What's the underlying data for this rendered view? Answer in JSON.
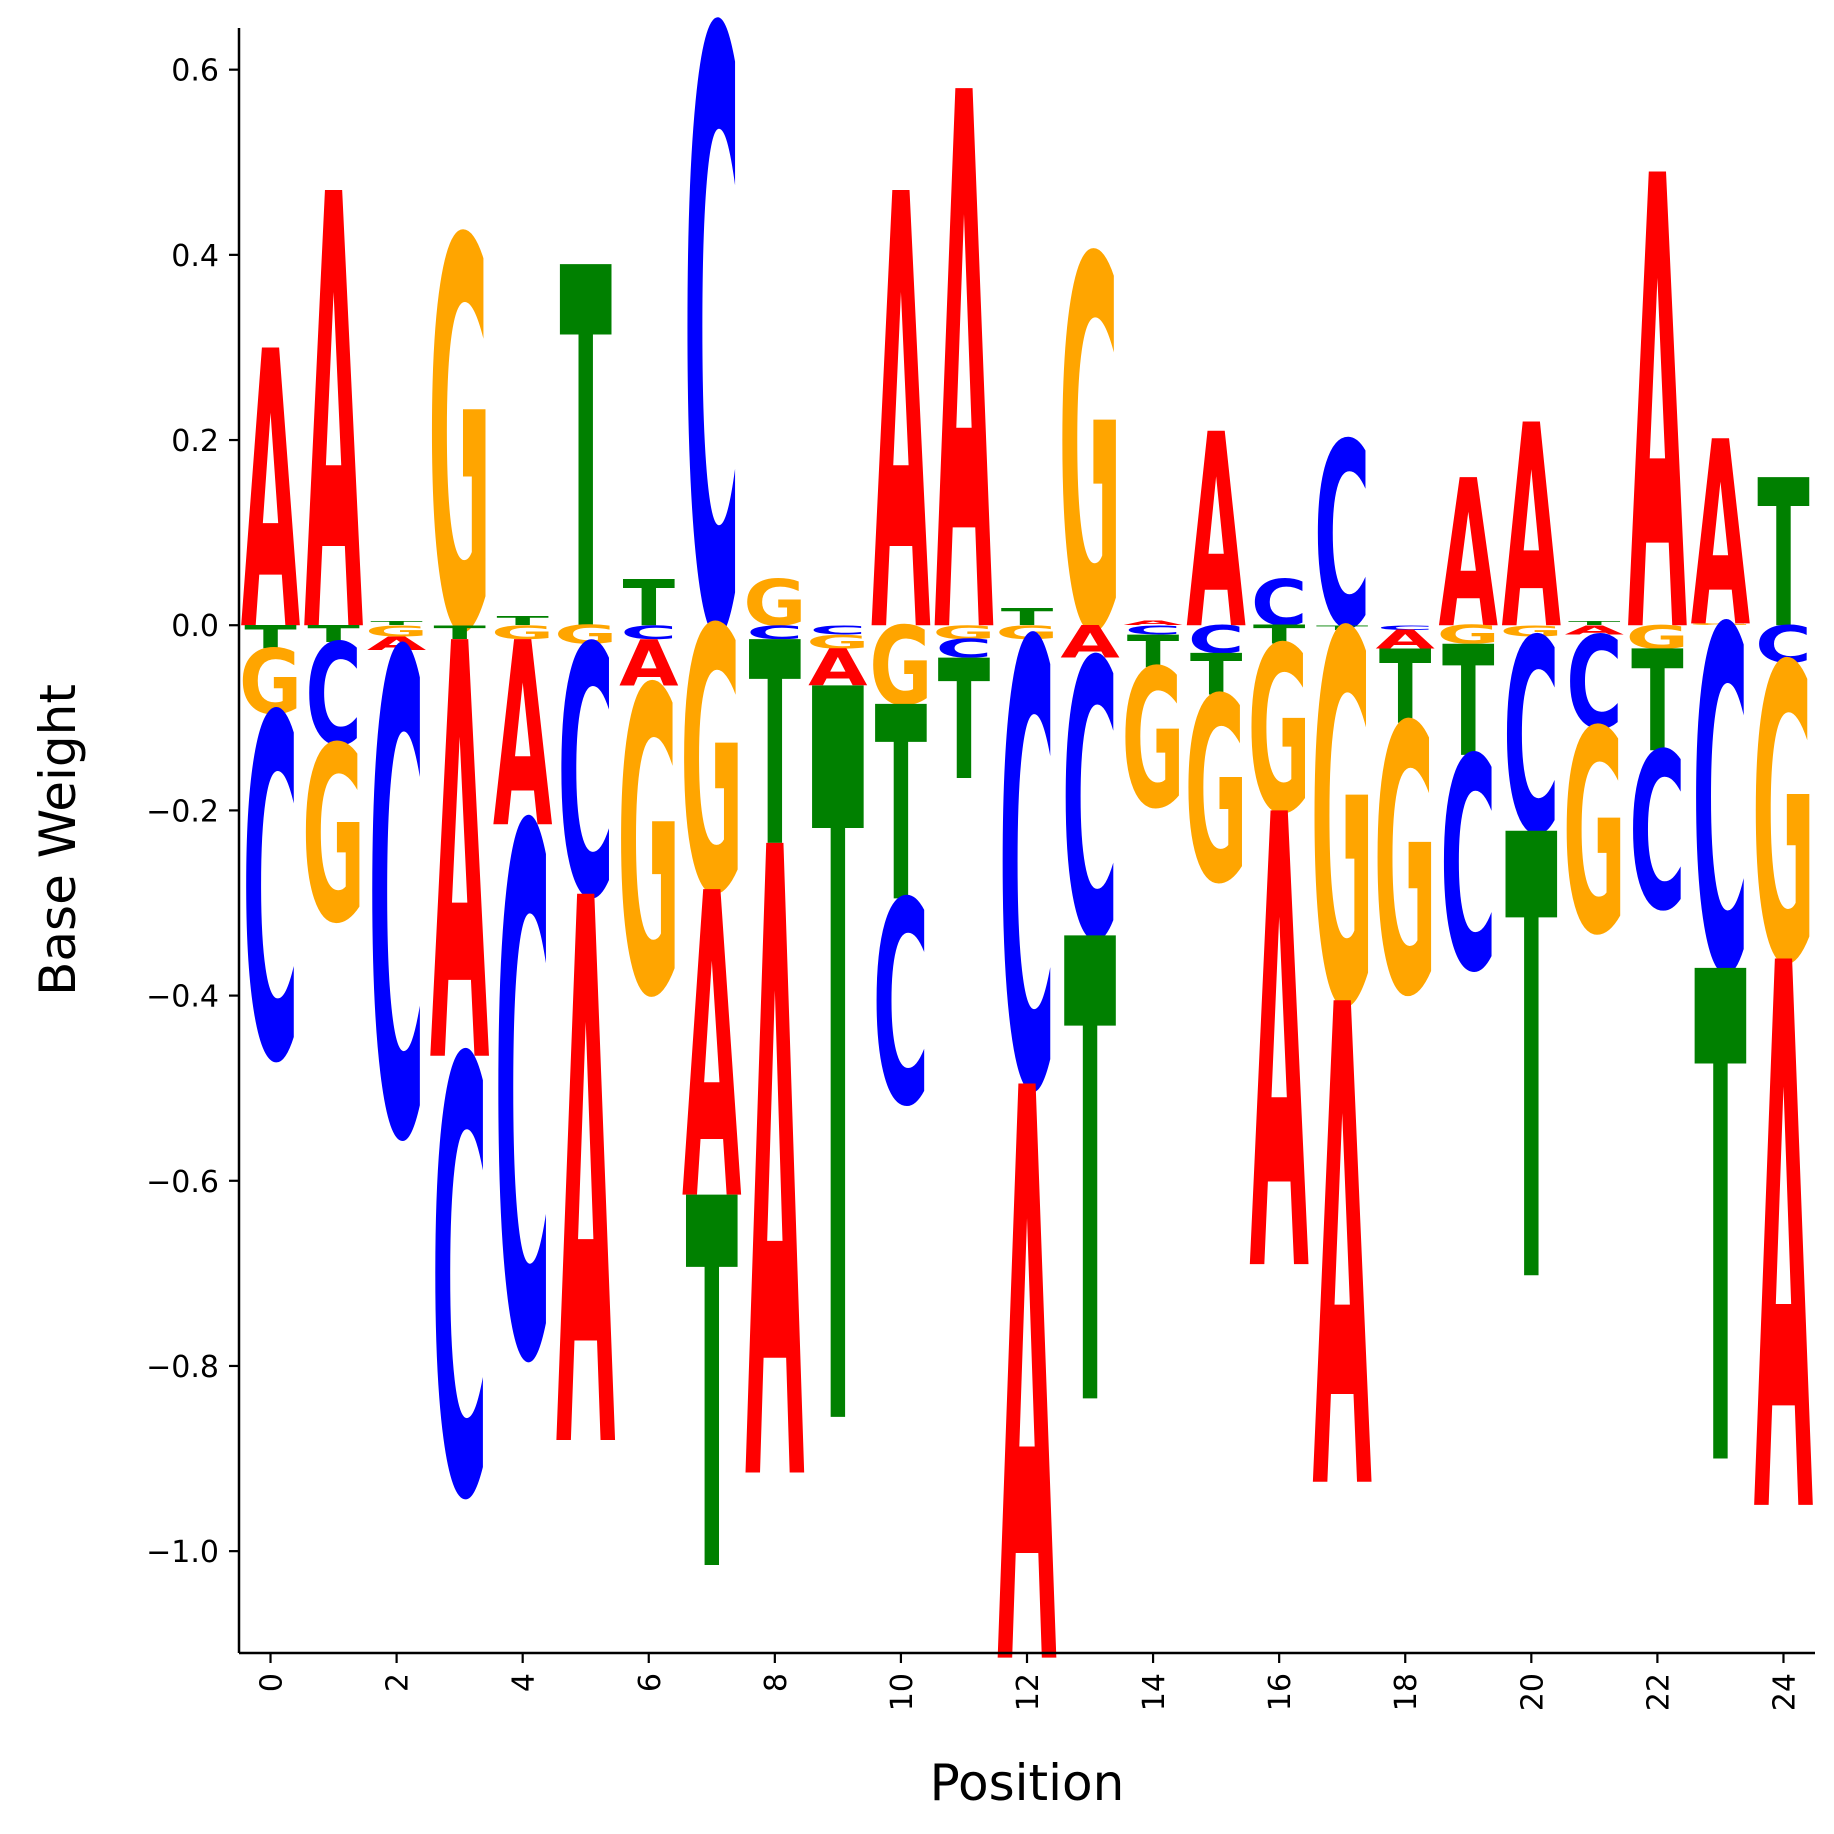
{
  "chart_data": {
    "type": "logo",
    "xlabel": "Position",
    "ylabel": "Base Weight",
    "xlim": [
      -0.5,
      24.5
    ],
    "ylim": [
      -1.11,
      0.645
    ],
    "x_ticks": [
      0,
      2,
      4,
      6,
      8,
      10,
      12,
      14,
      16,
      18,
      20,
      22,
      24
    ],
    "y_ticks": [
      -1.0,
      -0.8,
      -0.6,
      -0.4,
      -0.2,
      0.0,
      0.2,
      0.4,
      0.6
    ],
    "y_tick_labels": [
      "−1.0",
      "−0.8",
      "−0.6",
      "−0.4",
      "−0.2",
      "0.0",
      "0.2",
      "0.4",
      "0.6"
    ],
    "x_tick_labels": [
      "0",
      "2",
      "4",
      "6",
      "8",
      "10",
      "12",
      "14",
      "16",
      "18",
      "20",
      "22",
      "24"
    ],
    "colors": {
      "A": "#ff0000",
      "C": "#0000ff",
      "G": "#ffa500",
      "T": "#008000"
    },
    "positions": [
      {
        "x": 0,
        "A": 0.3,
        "C": -0.37,
        "G": -0.07,
        "T": -0.025
      },
      {
        "x": 1,
        "A": 0.47,
        "C": -0.11,
        "G": -0.19,
        "T": -0.018
      },
      {
        "x": 2,
        "A": -0.015,
        "C": -0.52,
        "G": -0.012,
        "T": 0.004
      },
      {
        "x": 3,
        "A": -0.45,
        "C": -0.47,
        "G": 0.42,
        "T": -0.015
      },
      {
        "x": 4,
        "A": -0.2,
        "C": -0.57,
        "G": -0.015,
        "T": 0.01
      },
      {
        "x": 5,
        "A": -0.59,
        "C": -0.27,
        "G": -0.02,
        "T": 0.39
      },
      {
        "x": 6,
        "A": -0.05,
        "C": -0.015,
        "G": -0.33,
        "T": 0.05
      },
      {
        "x": 7,
        "A": -0.33,
        "C": 0.645,
        "G": -0.285,
        "T": -0.4
      },
      {
        "x": 8,
        "A": -0.68,
        "C": -0.015,
        "G": 0.05,
        "T": -0.22
      },
      {
        "x": 9,
        "A": -0.04,
        "C": -0.01,
        "G": -0.015,
        "T": -0.79
      },
      {
        "x": 10,
        "A": 0.47,
        "C": -0.22,
        "G": -0.085,
        "T": -0.21
      },
      {
        "x": 11,
        "A": 0.58,
        "C": -0.02,
        "G": -0.015,
        "T": -0.13
      },
      {
        "x": 12,
        "A": -0.62,
        "C": -0.48,
        "G": -0.015,
        "T": 0.018
      },
      {
        "x": 13,
        "A": -0.035,
        "C": -0.3,
        "G": 0.4,
        "T": -0.5
      },
      {
        "x": 14,
        "A": 0.005,
        "C": -0.01,
        "G": -0.15,
        "T": -0.035
      },
      {
        "x": 15,
        "A": 0.21,
        "C": -0.03,
        "G": -0.2,
        "T": -0.045
      },
      {
        "x": 16,
        "A": -0.49,
        "C": 0.05,
        "G": -0.18,
        "T": -0.02
      },
      {
        "x": 17,
        "A": -0.52,
        "C": 0.2,
        "G": -0.4,
        "T": -0.005
      },
      {
        "x": 18,
        "A": -0.02,
        "C": -0.005,
        "G": -0.29,
        "T": -0.08
      },
      {
        "x": 19,
        "A": 0.16,
        "C": -0.23,
        "G": -0.02,
        "T": -0.12
      },
      {
        "x": 20,
        "A": 0.22,
        "C": -0.21,
        "G": -0.012,
        "T": -0.48
      },
      {
        "x": 21,
        "A": -0.01,
        "C": -0.1,
        "G": -0.22,
        "T": 0.004
      },
      {
        "x": 22,
        "A": 0.49,
        "C": -0.17,
        "G": -0.025,
        "T": -0.11
      },
      {
        "x": 23,
        "A": 0.2,
        "C": -0.37,
        "G": 0.002,
        "T": -0.53
      },
      {
        "x": 24,
        "A": -0.59,
        "C": -0.04,
        "G": -0.32,
        "T": 0.16
      }
    ]
  }
}
